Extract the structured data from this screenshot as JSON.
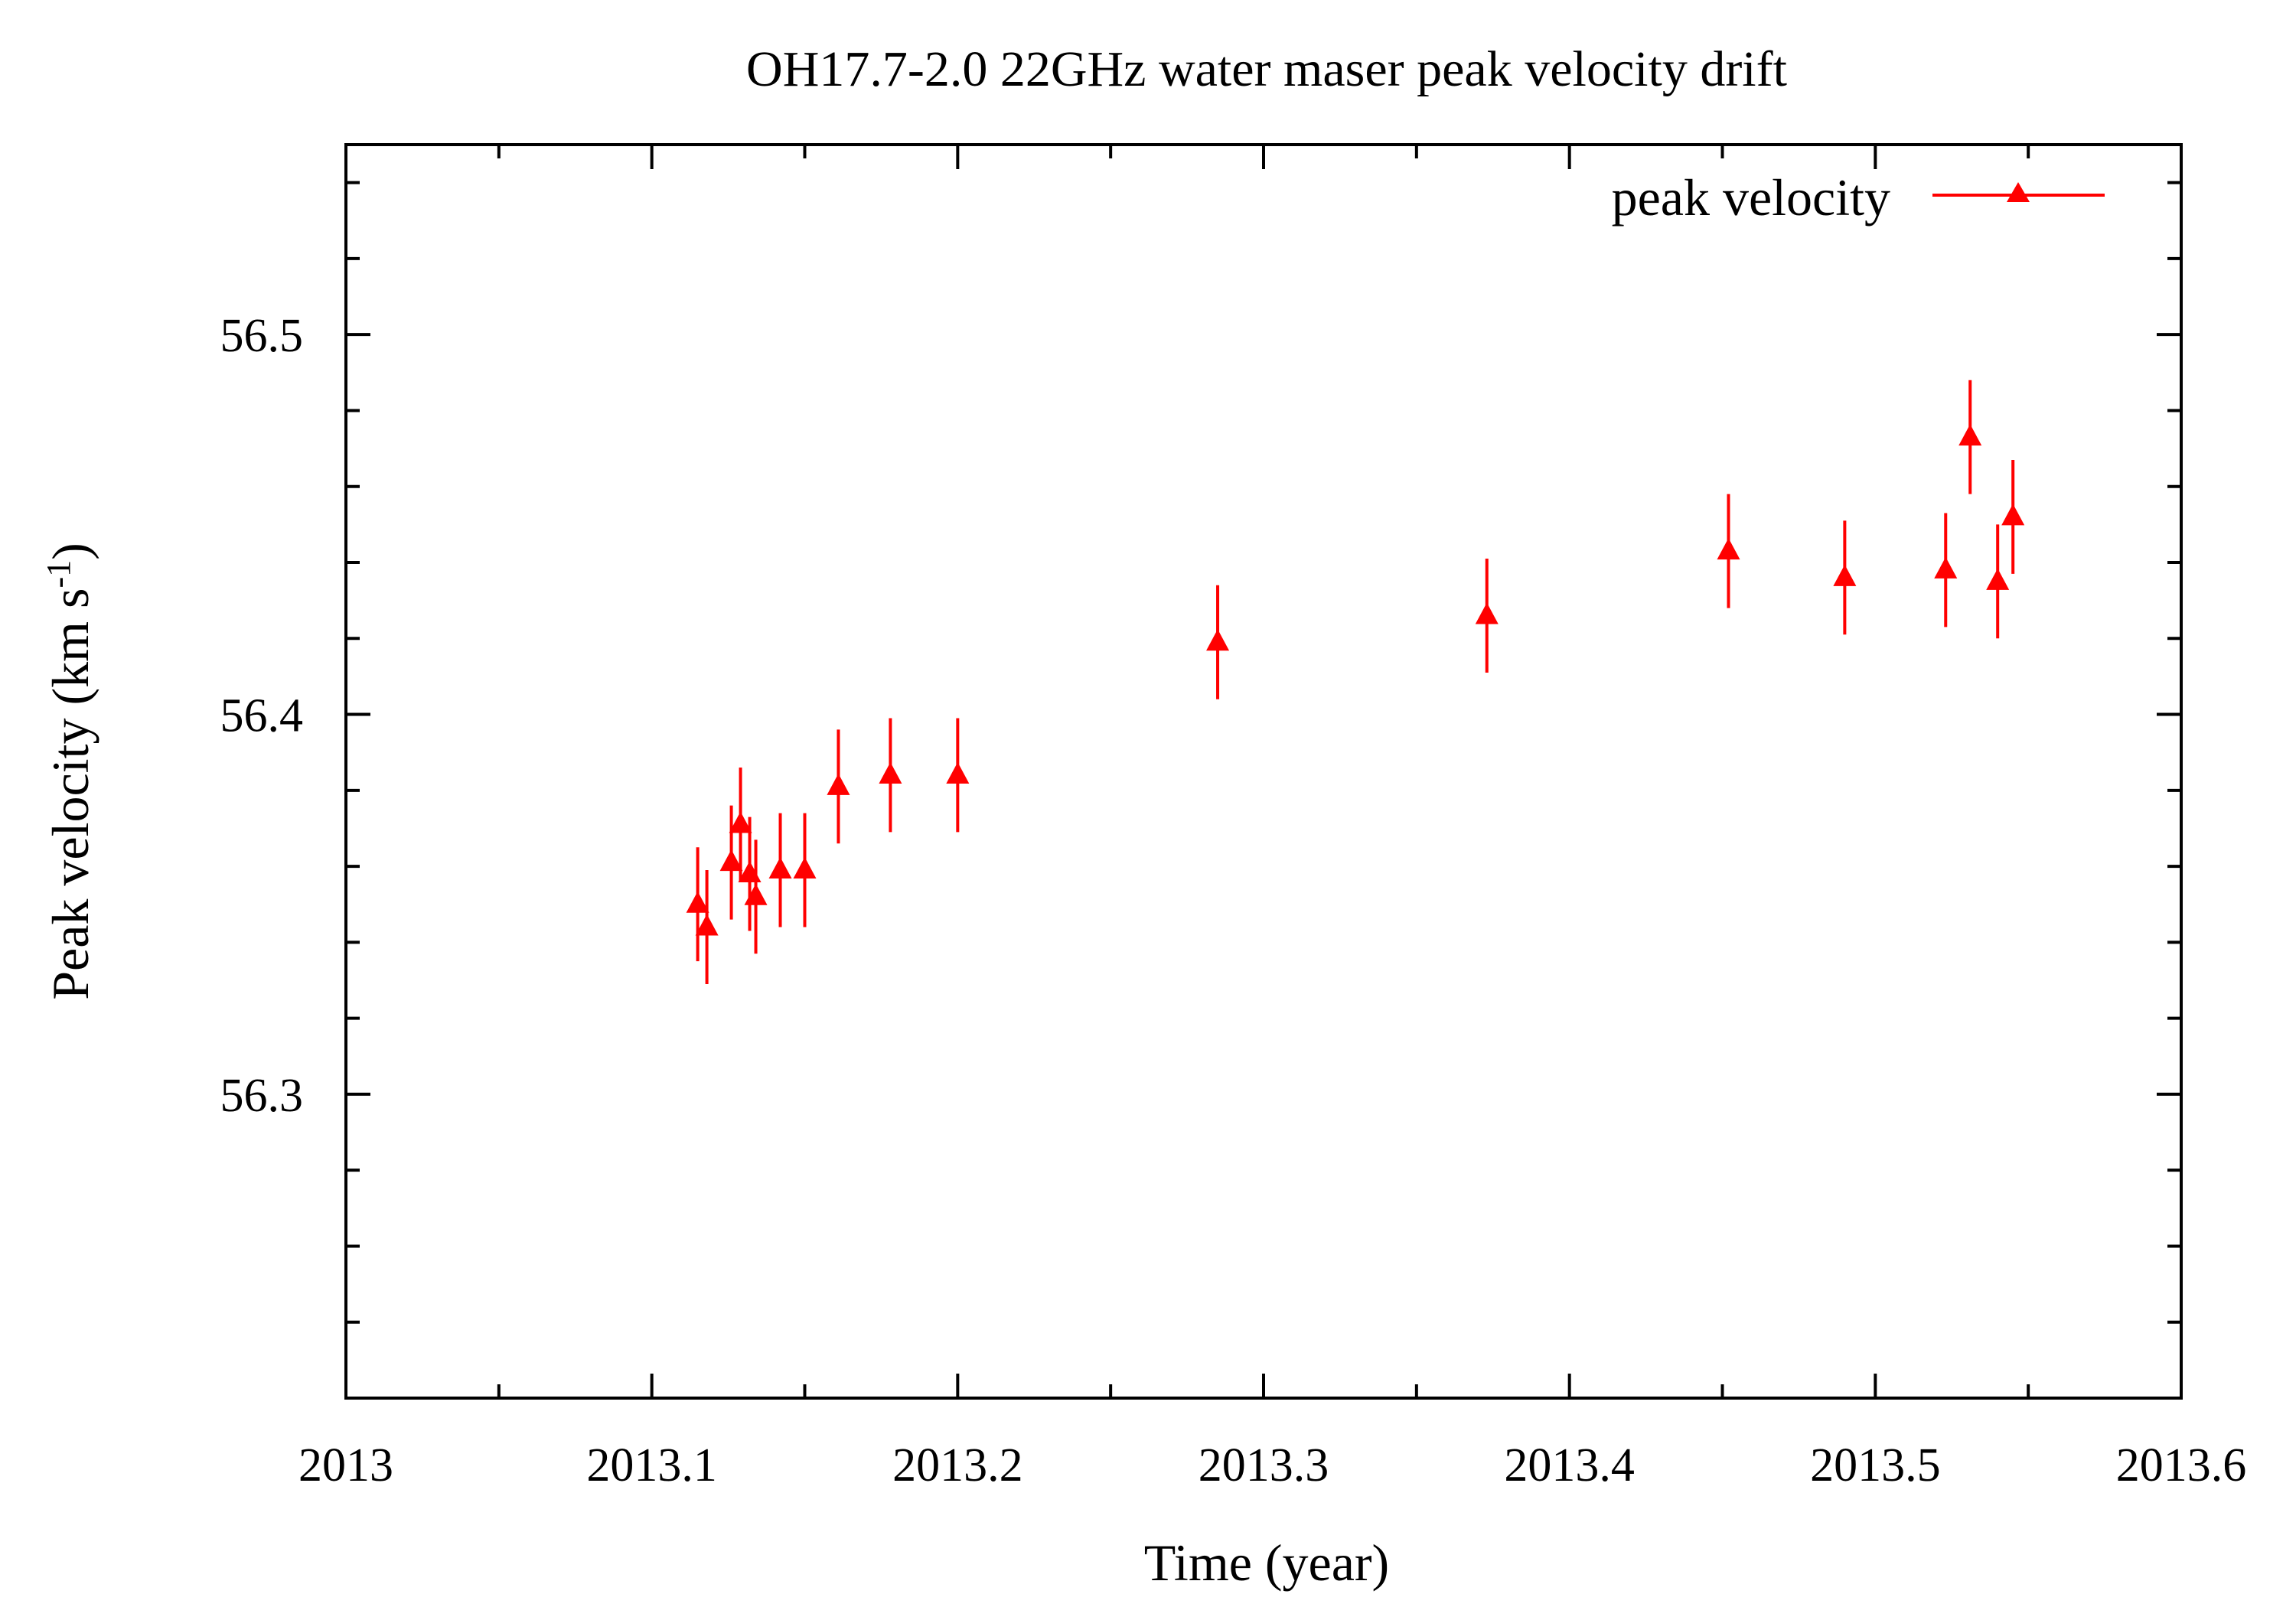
{
  "chart_data": {
    "type": "scatter",
    "title": "OH17.7-2.0 22GHz water maser peak velocity drift",
    "xlabel": "Time (year)",
    "ylabel": {
      "prefix": "Peak velocity (km s",
      "superscript": "-1",
      "suffix": ")"
    },
    "xlim": [
      2013,
      2013.6
    ],
    "ylim": [
      56.22,
      56.55
    ],
    "x_ticks": [
      2013,
      2013.1,
      2013.2,
      2013.3,
      2013.4,
      2013.5,
      2013.6
    ],
    "x_tick_labels": [
      "2013",
      "2013.1",
      "2013.2",
      "2013.3",
      "2013.4",
      "2013.5",
      "2013.6"
    ],
    "y_ticks": [
      56.3,
      56.4,
      56.5
    ],
    "y_tick_labels": [
      "56.3",
      "56.4",
      "56.5"
    ],
    "legend": {
      "position": "top-right",
      "entries": [
        "peak velocity"
      ]
    },
    "series": [
      {
        "name": "peak velocity",
        "color": "#ff0000",
        "marker": "triangle",
        "points": [
          {
            "x": 2013.115,
            "y": 56.35,
            "err": 0.015
          },
          {
            "x": 2013.118,
            "y": 56.344,
            "err": 0.015
          },
          {
            "x": 2013.126,
            "y": 56.361,
            "err": 0.015
          },
          {
            "x": 2013.129,
            "y": 56.371,
            "err": 0.015
          },
          {
            "x": 2013.132,
            "y": 56.358,
            "err": 0.015
          },
          {
            "x": 2013.134,
            "y": 56.352,
            "err": 0.015
          },
          {
            "x": 2013.142,
            "y": 56.359,
            "err": 0.015
          },
          {
            "x": 2013.15,
            "y": 56.359,
            "err": 0.015
          },
          {
            "x": 2013.161,
            "y": 56.381,
            "err": 0.015
          },
          {
            "x": 2013.178,
            "y": 56.384,
            "err": 0.015
          },
          {
            "x": 2013.2,
            "y": 56.384,
            "err": 0.015
          },
          {
            "x": 2013.285,
            "y": 56.419,
            "err": 0.015
          },
          {
            "x": 2013.373,
            "y": 56.426,
            "err": 0.015
          },
          {
            "x": 2013.452,
            "y": 56.443,
            "err": 0.015
          },
          {
            "x": 2013.49,
            "y": 56.436,
            "err": 0.015
          },
          {
            "x": 2013.523,
            "y": 56.438,
            "err": 0.015
          },
          {
            "x": 2013.531,
            "y": 56.473,
            "err": 0.015
          },
          {
            "x": 2013.54,
            "y": 56.435,
            "err": 0.015
          },
          {
            "x": 2013.545,
            "y": 56.452,
            "err": 0.015
          }
        ]
      }
    ]
  }
}
